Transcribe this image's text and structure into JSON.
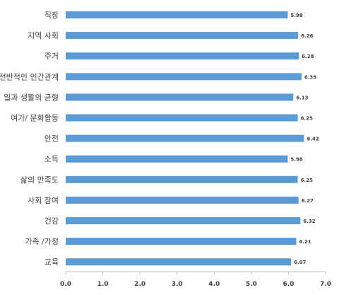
{
  "chart_data": {
    "type": "bar",
    "orientation": "horizontal",
    "categories": [
      "직장",
      "지역 사회",
      "주거",
      "전반적인 인간관계",
      "일과 생활의 균형",
      "여가/ 문화활동",
      "안전",
      "소득",
      "삶의 만족도",
      "사회 참여",
      "건강",
      "가족 /가정",
      "교육"
    ],
    "values": [
      5.98,
      6.26,
      6.28,
      6.35,
      6.13,
      6.25,
      6.42,
      5.98,
      6.25,
      6.27,
      6.32,
      6.21,
      6.07
    ],
    "data_labels": [
      "5.98",
      "6.26",
      "6.28",
      "6.35",
      "6.13",
      "6.25",
      "6.42",
      "5.98",
      "6.25",
      "6.27",
      "6.32",
      "6.21",
      "6.07"
    ],
    "x_ticks": [
      "0.0",
      "1.0",
      "2.0",
      "3.0",
      "4.0",
      "5.0",
      "6.0",
      "7.0"
    ],
    "xlim": [
      0,
      7
    ],
    "grid": false,
    "legend": "none",
    "title": "",
    "xlabel": "",
    "ylabel": "",
    "colors": {
      "bar": "#5B9BD5",
      "axis": "#BFBFBF",
      "text": "#404040",
      "label": "#404040"
    }
  }
}
